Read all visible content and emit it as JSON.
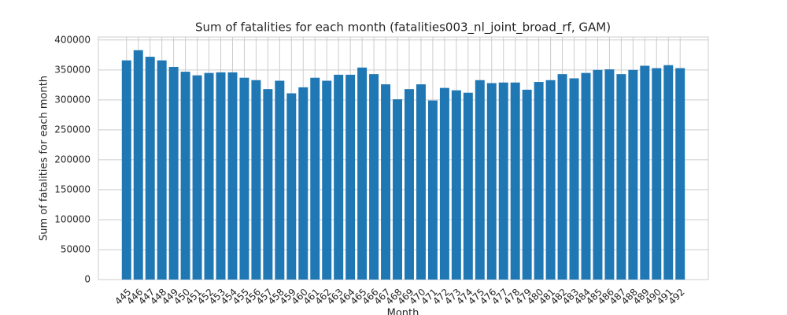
{
  "chart_data": {
    "type": "bar",
    "title": "Sum of fatalities for each month (fatalities003_nl_joint_broad_rf, GAM)",
    "x_label": "Month",
    "y_label": "Sum of fatalities for each month",
    "categories": [
      "445",
      "446",
      "447",
      "448",
      "449",
      "450",
      "451",
      "452",
      "453",
      "454",
      "455",
      "456",
      "457",
      "458",
      "459",
      "460",
      "461",
      "462",
      "463",
      "464",
      "465",
      "466",
      "467",
      "468",
      "469",
      "470",
      "471",
      "472",
      "473",
      "474",
      "475",
      "476",
      "477",
      "478",
      "479",
      "480",
      "481",
      "482",
      "483",
      "484",
      "485",
      "486",
      "487",
      "488",
      "489",
      "490",
      "491",
      "492"
    ],
    "values": [
      366000,
      383000,
      372000,
      366000,
      355000,
      347000,
      341000,
      345000,
      346000,
      346000,
      337000,
      333000,
      318000,
      332000,
      311000,
      321000,
      337000,
      332000,
      342000,
      342000,
      354000,
      343000,
      326000,
      301000,
      318000,
      326000,
      299000,
      320000,
      316000,
      312000,
      333000,
      328000,
      329000,
      329000,
      317000,
      330000,
      333000,
      343000,
      336000,
      345000,
      350000,
      351000,
      343000,
      350000,
      357000,
      353000,
      358000,
      353000
    ],
    "color": "#1f77b4",
    "ylim": [
      0,
      405000
    ],
    "yticks": [
      0,
      50000,
      100000,
      150000,
      200000,
      250000,
      300000,
      350000,
      400000
    ],
    "grid": true
  }
}
